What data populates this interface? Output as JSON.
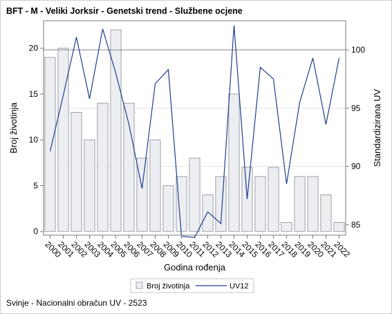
{
  "title": "BFT - M - Veliki Jorksir - Genetski trend - Službene ocjene",
  "footnote": "Svinje - Nacionalni obračun UV - 2523",
  "colors": {
    "bar_fill": "#eceef2",
    "bar_stroke": "#a0a0a8",
    "line": "#1f3d8c",
    "grid": "#e3e3e3",
    "reference_line": "#888888",
    "axis": "#777777"
  },
  "chart_data": {
    "type": "bar",
    "title": "BFT - M - Veliki Jorksir - Genetski trend - Službene ocjene",
    "xlabel": "Godina rođenja",
    "ylabel": "Broj životinja",
    "y2label": "Standardizirana UV",
    "categories": [
      "2000",
      "2001",
      "2002",
      "2003",
      "2004",
      "2005",
      "2006",
      "2007",
      "2008",
      "2009",
      "2010",
      "2011",
      "2012",
      "2013",
      "2014",
      "2015",
      "2016",
      "2017",
      "2018",
      "2019",
      "2020",
      "2021",
      "2022"
    ],
    "series": [
      {
        "name": "Broj životinja",
        "type": "bar",
        "axis": "left",
        "values": [
          19,
          20,
          13,
          10,
          14,
          22,
          14,
          8,
          10,
          5,
          6,
          8,
          4,
          6,
          15,
          7,
          6,
          7,
          1,
          6,
          6,
          4,
          1
        ]
      },
      {
        "name": "UV12",
        "type": "line",
        "axis": "right",
        "values": [
          91.3,
          96.1,
          101.1,
          95.8,
          101.8,
          98.0,
          93.6,
          88.1,
          97.1,
          98.3,
          84.0,
          83.9,
          86.1,
          85.1,
          102.1,
          87.2,
          98.5,
          97.5,
          88.5,
          95.5,
          99.3,
          93.6,
          99.3
        ]
      }
    ],
    "ylim": [
      -0.4,
      23
    ],
    "y_ticks": [
      0,
      5,
      10,
      15,
      20
    ],
    "y2lim": [
      84.1,
      102.5
    ],
    "y2_ticks": [
      85,
      90,
      95,
      100
    ],
    "reference_line_y2": 100,
    "grid": true,
    "legend_position": "bottom"
  }
}
